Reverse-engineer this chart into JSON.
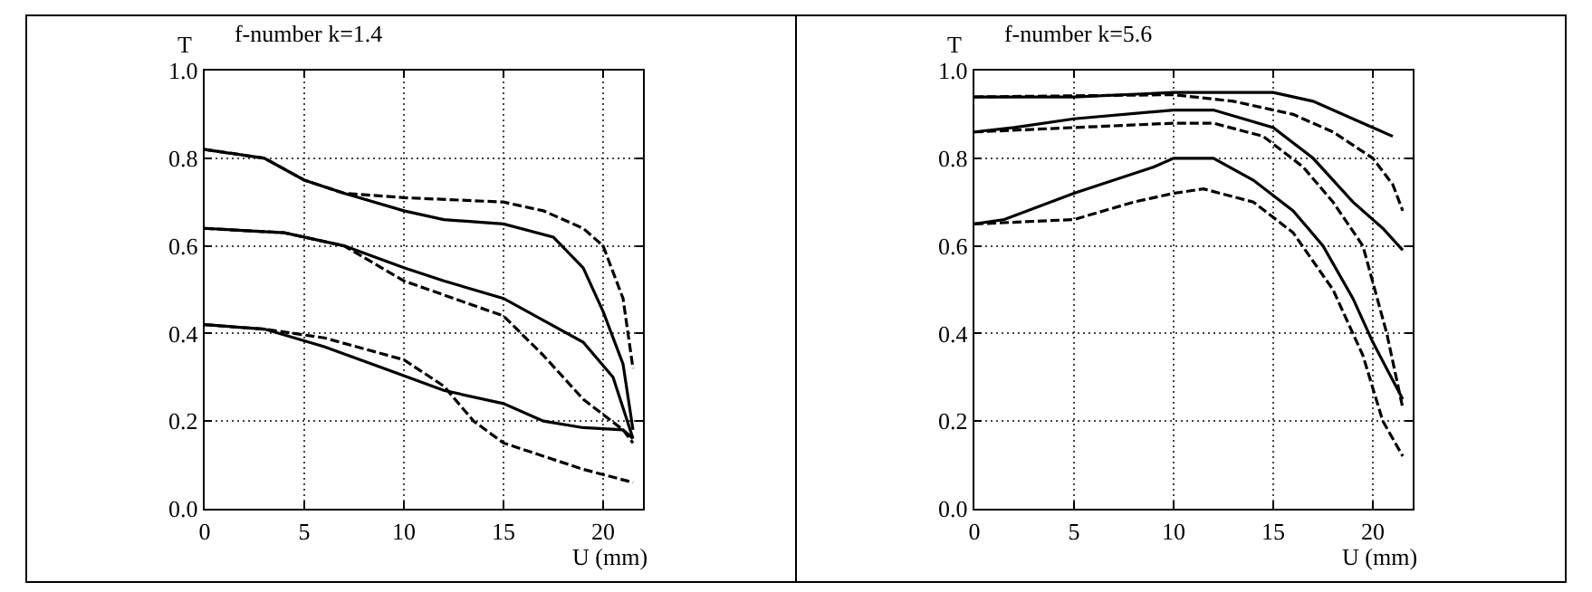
{
  "chart_data": [
    {
      "type": "line",
      "title": "f-number k=1.4",
      "ylabel": "T",
      "xlabel": "U (mm)",
      "xlim": [
        0,
        22
      ],
      "xticks": [
        0,
        5,
        10,
        15,
        20
      ],
      "ylim": [
        0,
        1
      ],
      "yticks": [
        {
          "value": 0,
          "label": "0.0"
        },
        {
          "value": 0.2,
          "label": "0.2"
        },
        {
          "value": 0.4,
          "label": "0.4"
        },
        {
          "value": 0.6,
          "label": "0.6"
        },
        {
          "value": 0.8,
          "label": "0.8"
        },
        {
          "value": 1,
          "label": "1.0"
        }
      ],
      "grid": true,
      "series": [
        {
          "color": "#000000",
          "line_style": "solid",
          "x": [
            0,
            3,
            5,
            7,
            10,
            12,
            15,
            17.5,
            19,
            20,
            21,
            21.5
          ],
          "values": [
            0.82,
            0.8,
            0.75,
            0.72,
            0.68,
            0.66,
            0.65,
            0.62,
            0.55,
            0.45,
            0.33,
            0.18
          ]
        },
        {
          "color": "#000000",
          "line_style": "dashed",
          "x": [
            0,
            3,
            5,
            7,
            10,
            15,
            17,
            19,
            20,
            21,
            21.5
          ],
          "values": [
            0.82,
            0.8,
            0.75,
            0.72,
            0.71,
            0.7,
            0.68,
            0.64,
            0.6,
            0.48,
            0.32
          ]
        },
        {
          "color": "#000000",
          "line_style": "solid",
          "x": [
            0,
            4,
            7,
            10,
            12,
            15,
            17,
            19,
            20.5,
            21.5
          ],
          "values": [
            0.64,
            0.63,
            0.6,
            0.55,
            0.52,
            0.48,
            0.43,
            0.38,
            0.3,
            0.16
          ]
        },
        {
          "color": "#000000",
          "line_style": "dashed",
          "x": [
            0,
            4,
            7,
            10,
            15,
            17,
            19,
            21,
            21.5
          ],
          "values": [
            0.64,
            0.63,
            0.6,
            0.52,
            0.44,
            0.35,
            0.25,
            0.18,
            0.15
          ]
        },
        {
          "color": "#000000",
          "line_style": "solid",
          "x": [
            0,
            3,
            6,
            9,
            12,
            15,
            17,
            19,
            21,
            21.5
          ],
          "values": [
            0.42,
            0.41,
            0.37,
            0.32,
            0.27,
            0.24,
            0.2,
            0.185,
            0.18,
            0.16
          ]
        },
        {
          "color": "#000000",
          "line_style": "dashed",
          "x": [
            0,
            3,
            6,
            10,
            12,
            13.5,
            15,
            17,
            19,
            21.5
          ],
          "values": [
            0.42,
            0.41,
            0.39,
            0.34,
            0.28,
            0.2,
            0.15,
            0.12,
            0.09,
            0.06
          ]
        }
      ]
    },
    {
      "type": "line",
      "title": "f-number k=5.6",
      "ylabel": "T",
      "xlabel": "U (mm)",
      "xlim": [
        0,
        22
      ],
      "xticks": [
        0,
        5,
        10,
        15,
        20
      ],
      "ylim": [
        0,
        1
      ],
      "yticks": [
        {
          "value": 0,
          "label": "0.0"
        },
        {
          "value": 0.2,
          "label": "0.2"
        },
        {
          "value": 0.4,
          "label": "0.4"
        },
        {
          "value": 0.6,
          "label": "0.6"
        },
        {
          "value": 0.8,
          "label": "0.8"
        },
        {
          "value": 1,
          "label": "1.0"
        }
      ],
      "grid": true,
      "series": [
        {
          "color": "#000000",
          "line_style": "solid",
          "x": [
            0,
            5,
            10,
            15,
            17,
            19,
            20,
            21
          ],
          "values": [
            0.94,
            0.94,
            0.95,
            0.95,
            0.93,
            0.89,
            0.87,
            0.85
          ]
        },
        {
          "color": "#000000",
          "line_style": "dashed",
          "x": [
            0,
            10,
            13,
            16,
            18,
            20,
            21,
            21.5
          ],
          "values": [
            0.94,
            0.945,
            0.93,
            0.9,
            0.86,
            0.8,
            0.74,
            0.68
          ]
        },
        {
          "color": "#000000",
          "line_style": "solid",
          "x": [
            0,
            2,
            5,
            10,
            12,
            15,
            17,
            19,
            20.5,
            21.5
          ],
          "values": [
            0.86,
            0.87,
            0.89,
            0.91,
            0.91,
            0.87,
            0.8,
            0.7,
            0.64,
            0.59
          ]
        },
        {
          "color": "#000000",
          "line_style": "dashed",
          "x": [
            0,
            5,
            10,
            12,
            14.5,
            16.5,
            18,
            19.5,
            20.7,
            21.5
          ],
          "values": [
            0.86,
            0.87,
            0.88,
            0.88,
            0.85,
            0.78,
            0.7,
            0.6,
            0.4,
            0.23
          ]
        },
        {
          "color": "#000000",
          "line_style": "solid",
          "x": [
            0,
            1.5,
            5,
            9,
            10,
            12,
            14,
            16,
            17.5,
            19,
            20,
            21.5
          ],
          "values": [
            0.65,
            0.66,
            0.72,
            0.78,
            0.8,
            0.8,
            0.75,
            0.68,
            0.6,
            0.48,
            0.38,
            0.25
          ]
        },
        {
          "color": "#000000",
          "line_style": "dashed",
          "x": [
            0,
            5,
            8,
            10,
            11.5,
            14,
            16,
            18,
            19.5,
            20.5,
            21.5
          ],
          "values": [
            0.65,
            0.66,
            0.7,
            0.72,
            0.73,
            0.7,
            0.63,
            0.5,
            0.35,
            0.2,
            0.12
          ]
        }
      ]
    }
  ]
}
